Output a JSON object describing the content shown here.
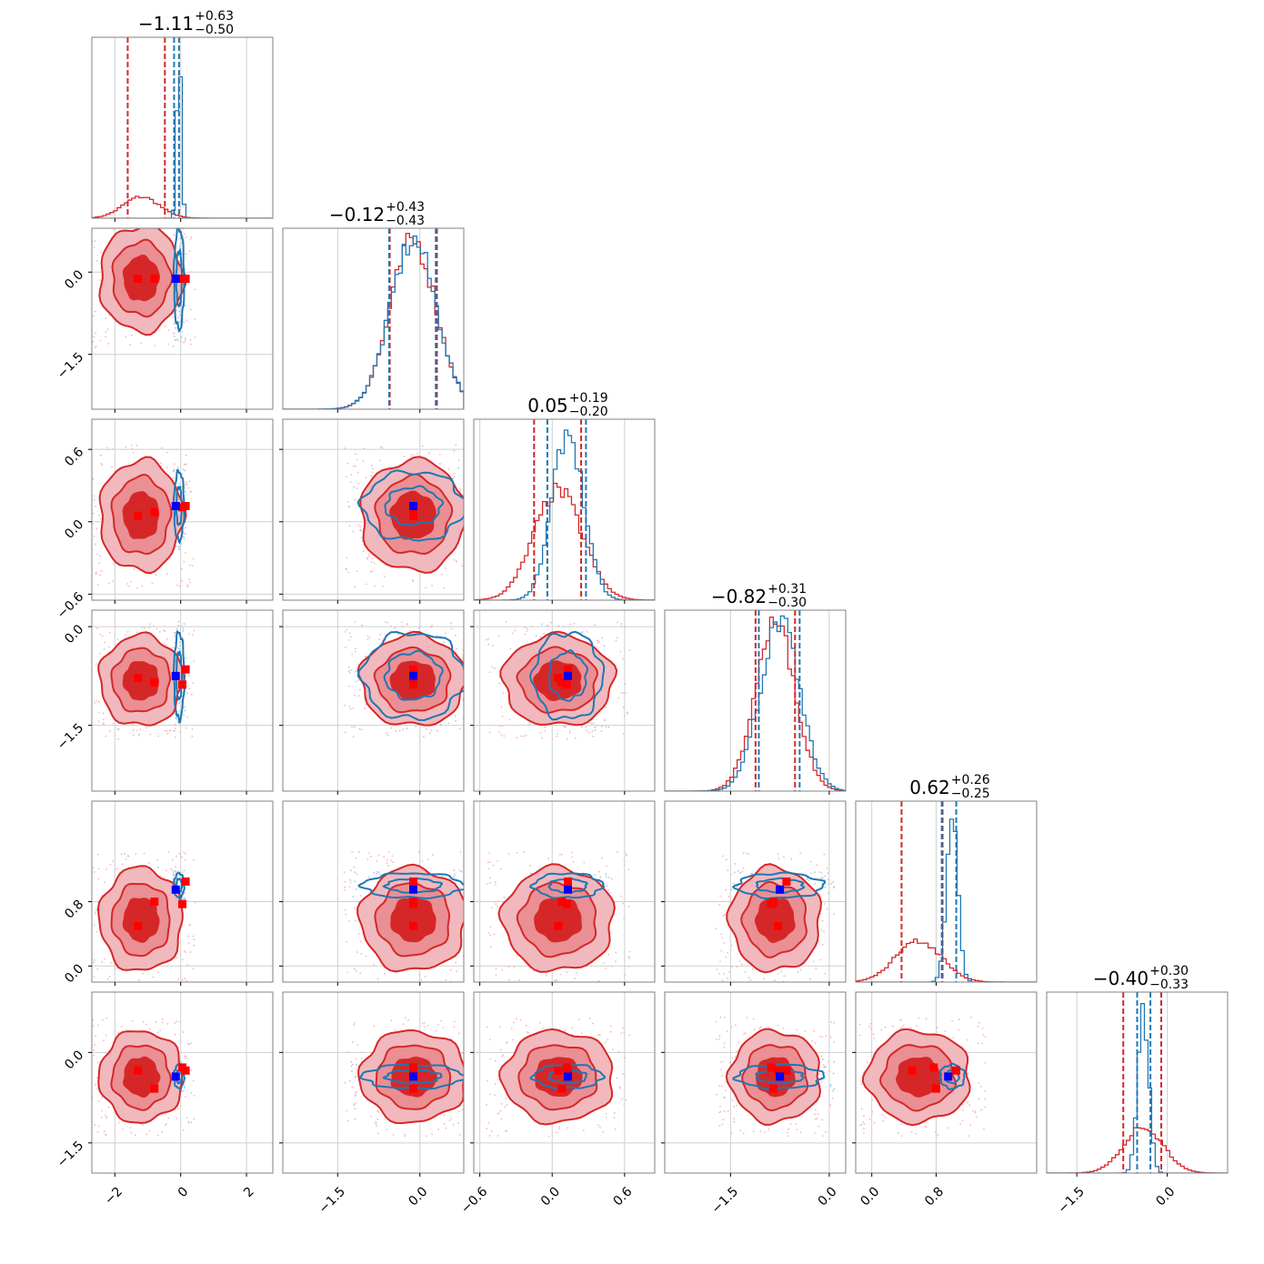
{
  "chart_data": {
    "type": "corner",
    "n_params": 6,
    "colors": {
      "red": "#d62728",
      "blue": "#1f77b4",
      "grid": "#cfcfcf",
      "frame": "#808080"
    },
    "titles": [
      {
        "center": "−1.11",
        "plus": "+0.63",
        "minus": "−0.50"
      },
      {
        "center": "−0.12",
        "plus": "+0.43",
        "minus": "−0.43"
      },
      {
        "center": "0.05",
        "plus": "+0.19",
        "minus": "−0.20"
      },
      {
        "center": "−0.82",
        "plus": "+0.31",
        "minus": "−0.30"
      },
      {
        "center": "0.62",
        "plus": "+0.26",
        "minus": "−0.25"
      },
      {
        "center": "−0.40",
        "plus": "+0.30",
        "minus": "−0.33"
      }
    ],
    "params": [
      {
        "range": [
          -2.7,
          2.8
        ],
        "ticks": [
          -2,
          0,
          2
        ],
        "tick_labels": [
          "−2",
          "0",
          "2"
        ],
        "red": {
          "mean": -1.2,
          "sd": 0.55
        },
        "blue": {
          "mean": -0.05,
          "sd": 0.07
        },
        "red_quantiles": [
          -1.61,
          -0.48
        ],
        "blue_quantiles": [
          -0.2,
          -0.05
        ],
        "red_markers": [
          -1.3,
          -0.8,
          0.15,
          0.05
        ],
        "blue_marker": -0.15
      },
      {
        "range": [
          -2.5,
          0.8
        ],
        "ticks": [
          -1.5,
          0.0
        ],
        "tick_labels": [
          "−1.5",
          "0.0"
        ],
        "red": {
          "mean": -0.12,
          "sd": 0.42
        },
        "blue": {
          "mean": -0.12,
          "sd": 0.42
        },
        "red_quantiles": [
          -0.55,
          0.31
        ],
        "blue_quantiles": [
          -0.56,
          0.29
        ],
        "red_markers": [
          -0.12
        ],
        "blue_marker": -0.12
      },
      {
        "range": [
          -0.65,
          0.85
        ],
        "ticks": [
          -0.6,
          0.0,
          0.6
        ],
        "tick_labels": [
          "−0.6",
          "0.0",
          "0.6"
        ],
        "red": {
          "mean": 0.05,
          "sd": 0.2
        },
        "blue": {
          "mean": 0.13,
          "sd": 0.13
        },
        "red_quantiles": [
          -0.15,
          0.24
        ],
        "blue_quantiles": [
          -0.04,
          0.28
        ],
        "red_markers": [
          0.05,
          0.08,
          0.13,
          0.12
        ],
        "blue_marker": 0.13
      },
      {
        "range": [
          -2.5,
          0.25
        ],
        "ticks": [
          -1.5,
          0.0
        ],
        "tick_labels": [
          "−1.5",
          "0.0"
        ],
        "red": {
          "mean": -0.82,
          "sd": 0.3
        },
        "blue": {
          "mean": -0.75,
          "sd": 0.3
        },
        "red_quantiles": [
          -1.12,
          -0.52
        ],
        "blue_quantiles": [
          -1.07,
          -0.45
        ],
        "red_markers": [
          -0.78,
          -0.85,
          -0.65,
          -0.88
        ],
        "blue_marker": -0.75
      },
      {
        "range": [
          -0.2,
          2.05
        ],
        "ticks": [
          0.0,
          0.8
        ],
        "tick_labels": [
          "0.0",
          "0.8"
        ],
        "red": {
          "mean": 0.58,
          "sd": 0.28
        },
        "blue": {
          "mean": 1.0,
          "sd": 0.07
        },
        "red_quantiles": [
          0.37,
          0.88
        ],
        "blue_quantiles": [
          0.87,
          1.05
        ],
        "red_markers": [
          0.5,
          0.8,
          1.05,
          0.77
        ],
        "blue_marker": 0.95
      },
      {
        "range": [
          -2.0,
          1.0
        ],
        "ticks": [
          -1.5,
          0.0
        ],
        "tick_labels": [
          "−1.5",
          "0.0"
        ],
        "red": {
          "mean": -0.4,
          "sd": 0.33
        },
        "blue": {
          "mean": -0.4,
          "sd": 0.09
        },
        "red_quantiles": [
          -0.73,
          -0.1
        ],
        "blue_quantiles": [
          -0.5,
          -0.28
        ],
        "red_markers": [
          -0.3,
          -0.6,
          -0.3,
          -0.25
        ],
        "blue_marker": -0.4
      }
    ]
  }
}
